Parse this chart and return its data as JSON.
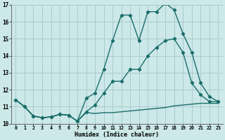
{
  "title": "",
  "xlabel": "Humidex (Indice chaleur)",
  "bg_color": "#cce8e8",
  "grid_color": "#aacccc",
  "line_color": "#1a6e6a",
  "xlim": [
    -0.5,
    23.5
  ],
  "ylim": [
    10.0,
    17.0
  ],
  "yticks": [
    10,
    11,
    12,
    13,
    14,
    15,
    16,
    17
  ],
  "xticks": [
    0,
    1,
    2,
    3,
    4,
    5,
    6,
    7,
    8,
    9,
    10,
    11,
    12,
    13,
    14,
    15,
    16,
    17,
    18,
    19,
    20,
    21,
    22,
    23
  ],
  "series": [
    {
      "x": [
        0,
        1,
        2,
        3,
        4,
        5,
        6,
        7,
        8,
        9,
        10,
        11,
        12,
        13,
        14,
        15,
        16,
        17,
        18,
        19,
        20,
        21,
        22,
        23
      ],
      "y": [
        11.4,
        11.0,
        10.45,
        10.35,
        10.4,
        10.55,
        10.5,
        10.15,
        10.65,
        10.6,
        10.65,
        10.65,
        10.7,
        10.75,
        10.8,
        10.85,
        10.9,
        10.95,
        11.05,
        11.1,
        11.15,
        11.2,
        11.2,
        11.2
      ],
      "marker": false,
      "lw": 1.0
    },
    {
      "x": [
        0,
        1,
        2,
        3,
        4,
        5,
        6,
        7,
        8,
        9,
        10,
        11,
        12,
        13,
        14,
        15,
        16,
        17,
        18,
        19,
        20,
        21,
        22,
        23
      ],
      "y": [
        11.4,
        11.0,
        10.45,
        10.35,
        10.4,
        10.55,
        10.5,
        10.15,
        10.7,
        11.1,
        11.8,
        12.5,
        12.5,
        13.2,
        13.2,
        14.0,
        14.5,
        14.9,
        15.0,
        14.2,
        12.4,
        11.7,
        11.3,
        11.3
      ],
      "marker": true,
      "lw": 1.0
    },
    {
      "x": [
        0,
        1,
        2,
        3,
        4,
        5,
        6,
        7,
        8,
        9,
        10,
        11,
        12,
        13,
        14,
        15,
        16,
        17,
        18,
        19,
        20,
        21,
        22,
        23
      ],
      "y": [
        11.4,
        11.0,
        10.45,
        10.35,
        10.4,
        10.55,
        10.5,
        10.15,
        11.5,
        11.8,
        13.2,
        14.9,
        16.4,
        16.4,
        14.9,
        16.6,
        16.6,
        17.1,
        16.7,
        15.3,
        14.2,
        12.4,
        11.6,
        11.3
      ],
      "marker": true,
      "lw": 1.0
    }
  ]
}
